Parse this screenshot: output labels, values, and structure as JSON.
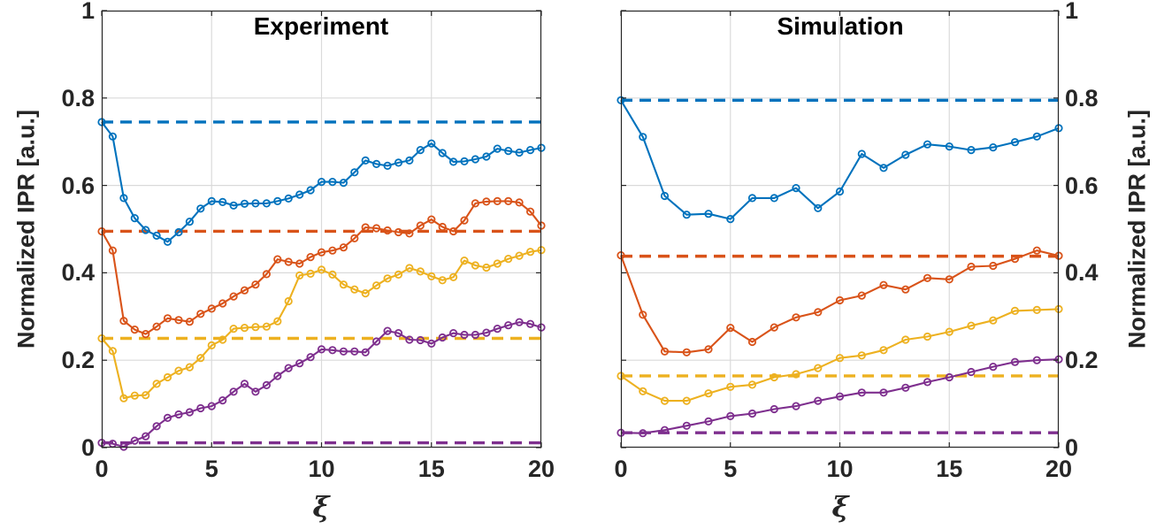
{
  "palette": {
    "blue": "#0072BD",
    "orange": "#D95319",
    "yellow": "#EDB120",
    "purple": "#7E2F8E",
    "axis": "#262626",
    "grid": "#dadada",
    "background": "#ffffff"
  },
  "chart_data": [
    {
      "type": "line",
      "title": "Experiment",
      "xlabel": "ξ",
      "ylabel": "Normalized IPR [a.u.]",
      "xlim": [
        0,
        20
      ],
      "ylim": [
        0,
        1
      ],
      "xticks": [
        0,
        5,
        10,
        15,
        20
      ],
      "xtick_labels": [
        "0",
        "5",
        "10",
        "15",
        "20"
      ],
      "yticks": [
        0,
        0.2,
        0.4,
        0.6,
        0.8,
        1
      ],
      "ytick_labels": [
        "0",
        "0.2",
        "0.4",
        "0.6",
        "0.8",
        "1"
      ],
      "ytick_side": "left",
      "grid": true,
      "legend": "none",
      "marker": "circle",
      "x_start": 0,
      "x_step": 0.5,
      "series": [
        {
          "name": "blue-solid",
          "color": "#0072BD",
          "values": [
            0.745,
            0.712,
            0.571,
            0.525,
            0.498,
            0.485,
            0.471,
            0.493,
            0.517,
            0.547,
            0.564,
            0.562,
            0.554,
            0.558,
            0.559,
            0.559,
            0.564,
            0.57,
            0.579,
            0.589,
            0.608,
            0.608,
            0.606,
            0.63,
            0.657,
            0.649,
            0.645,
            0.652,
            0.657,
            0.681,
            0.696,
            0.674,
            0.654,
            0.655,
            0.66,
            0.666,
            0.684,
            0.679,
            0.675,
            0.681,
            0.686
          ]
        },
        {
          "name": "orange-solid",
          "color": "#D95319",
          "values": [
            0.495,
            0.451,
            0.29,
            0.27,
            0.26,
            0.277,
            0.296,
            0.292,
            0.288,
            0.306,
            0.318,
            0.33,
            0.346,
            0.36,
            0.373,
            0.397,
            0.431,
            0.425,
            0.421,
            0.436,
            0.447,
            0.451,
            0.458,
            0.479,
            0.504,
            0.502,
            0.497,
            0.493,
            0.49,
            0.508,
            0.522,
            0.505,
            0.495,
            0.52,
            0.559,
            0.563,
            0.564,
            0.564,
            0.561,
            0.54,
            0.508
          ]
        },
        {
          "name": "yellow-solid",
          "color": "#EDB120",
          "values": [
            0.25,
            0.221,
            0.113,
            0.119,
            0.12,
            0.146,
            0.161,
            0.176,
            0.184,
            0.205,
            0.234,
            0.247,
            0.272,
            0.274,
            0.276,
            0.277,
            0.289,
            0.335,
            0.394,
            0.398,
            0.407,
            0.396,
            0.373,
            0.362,
            0.353,
            0.371,
            0.387,
            0.396,
            0.411,
            0.403,
            0.392,
            0.383,
            0.39,
            0.428,
            0.417,
            0.412,
            0.421,
            0.432,
            0.439,
            0.448,
            0.452
          ]
        },
        {
          "name": "purple-solid",
          "color": "#7E2F8E",
          "values": [
            0.011,
            0.009,
            0.002,
            0.016,
            0.026,
            0.049,
            0.068,
            0.076,
            0.081,
            0.09,
            0.095,
            0.108,
            0.128,
            0.146,
            0.128,
            0.143,
            0.164,
            0.182,
            0.193,
            0.207,
            0.225,
            0.223,
            0.22,
            0.22,
            0.218,
            0.243,
            0.267,
            0.262,
            0.247,
            0.246,
            0.238,
            0.252,
            0.262,
            0.258,
            0.258,
            0.263,
            0.272,
            0.28,
            0.287,
            0.283,
            0.275
          ]
        }
      ],
      "baselines": [
        {
          "name": "blue-dashed",
          "color": "#0072BD",
          "value": 0.745
        },
        {
          "name": "orange-dashed",
          "color": "#D95319",
          "value": 0.495
        },
        {
          "name": "yellow-dashed",
          "color": "#EDB120",
          "value": 0.25
        },
        {
          "name": "purple-dashed",
          "color": "#7E2F8E",
          "value": 0.011
        }
      ]
    },
    {
      "type": "line",
      "title": "Simulation",
      "xlabel": "ξ",
      "ylabel": "Normalized IPR [a.u.]",
      "xlim": [
        0,
        20
      ],
      "ylim": [
        0,
        1
      ],
      "xticks": [
        0,
        5,
        10,
        15,
        20
      ],
      "xtick_labels": [
        "0",
        "5",
        "10",
        "15",
        "20"
      ],
      "yticks": [
        0,
        0.2,
        0.4,
        0.6,
        0.8,
        1
      ],
      "ytick_labels": [
        "0",
        "0.2",
        "0.4",
        "0.6",
        "0.8",
        "1"
      ],
      "ytick_side": "right",
      "grid": true,
      "legend": "none",
      "marker": "circle",
      "x_start": 0,
      "x_step": 1,
      "series": [
        {
          "name": "blue-solid",
          "color": "#0072BD",
          "values": [
            0.795,
            0.711,
            0.576,
            0.533,
            0.535,
            0.523,
            0.571,
            0.571,
            0.594,
            0.548,
            0.586,
            0.672,
            0.64,
            0.67,
            0.694,
            0.689,
            0.681,
            0.687,
            0.699,
            0.712,
            0.731
          ]
        },
        {
          "name": "orange-solid",
          "color": "#D95319",
          "values": [
            0.44,
            0.304,
            0.22,
            0.218,
            0.225,
            0.274,
            0.242,
            0.275,
            0.298,
            0.31,
            0.337,
            0.348,
            0.372,
            0.362,
            0.388,
            0.385,
            0.414,
            0.416,
            0.432,
            0.451,
            0.439
          ]
        },
        {
          "name": "yellow-solid",
          "color": "#EDB120",
          "values": [
            0.164,
            0.129,
            0.107,
            0.107,
            0.124,
            0.139,
            0.144,
            0.161,
            0.168,
            0.182,
            0.205,
            0.211,
            0.223,
            0.247,
            0.254,
            0.265,
            0.279,
            0.291,
            0.313,
            0.315,
            0.317
          ]
        },
        {
          "name": "purple-solid",
          "color": "#7E2F8E",
          "values": [
            0.034,
            0.033,
            0.04,
            0.05,
            0.06,
            0.072,
            0.078,
            0.088,
            0.095,
            0.107,
            0.117,
            0.126,
            0.126,
            0.137,
            0.15,
            0.161,
            0.173,
            0.185,
            0.196,
            0.2,
            0.202
          ]
        }
      ],
      "baselines": [
        {
          "name": "blue-dashed",
          "color": "#0072BD",
          "value": 0.795
        },
        {
          "name": "orange-dashed",
          "color": "#D95319",
          "value": 0.438
        },
        {
          "name": "yellow-dashed",
          "color": "#EDB120",
          "value": 0.164
        },
        {
          "name": "purple-dashed",
          "color": "#7E2F8E",
          "value": 0.034
        }
      ]
    }
  ]
}
